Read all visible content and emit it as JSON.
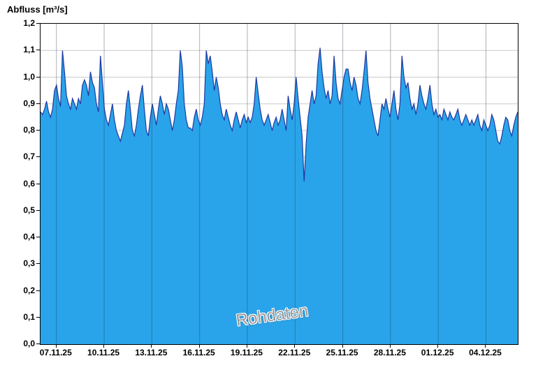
{
  "chart_data": {
    "type": "area",
    "title": "Abfluss [m³/s]",
    "watermark": "Rohdaten",
    "ylabel": "Abfluss [m³/s]",
    "ylim": [
      0,
      1.2
    ],
    "grid": "on",
    "legend": "none",
    "y_ticks": [
      {
        "value": 0.0,
        "label": "0,0"
      },
      {
        "value": 0.1,
        "label": "0,1"
      },
      {
        "value": 0.2,
        "label": "0,2"
      },
      {
        "value": 0.3,
        "label": "0,3"
      },
      {
        "value": 0.4,
        "label": "0,4"
      },
      {
        "value": 0.5,
        "label": "0,5"
      },
      {
        "value": 0.6,
        "label": "0,6"
      },
      {
        "value": 0.7,
        "label": "0,7"
      },
      {
        "value": 0.8,
        "label": "0,8"
      },
      {
        "value": 0.9,
        "label": "0,9"
      },
      {
        "value": 1.0,
        "label": "1,0"
      },
      {
        "value": 1.1,
        "label": "1,1"
      },
      {
        "value": 1.2,
        "label": "1,2"
      }
    ],
    "x_range_days": [
      0,
      30
    ],
    "x_ticks": [
      {
        "day": 1,
        "label": "07.11.25"
      },
      {
        "day": 4,
        "label": "10.11.25"
      },
      {
        "day": 7,
        "label": "13.11.25"
      },
      {
        "day": 10,
        "label": "16.11.25"
      },
      {
        "day": 13,
        "label": "19.11.25"
      },
      {
        "day": 16,
        "label": "22.11.25"
      },
      {
        "day": 19,
        "label": "25.11.25"
      },
      {
        "day": 22,
        "label": "28.11.25"
      },
      {
        "day": 25,
        "label": "01.12.25"
      },
      {
        "day": 28,
        "label": "04.12.25"
      }
    ],
    "series": [
      {
        "name": "Rohdaten",
        "unit": "m³/s",
        "values": [
          0.87,
          0.86,
          0.88,
          0.91,
          0.87,
          0.85,
          0.88,
          0.95,
          0.97,
          0.92,
          0.89,
          1.1,
          1.02,
          0.93,
          0.9,
          0.88,
          0.92,
          0.9,
          0.88,
          0.92,
          0.9,
          0.97,
          0.99,
          0.97,
          0.93,
          1.02,
          0.98,
          0.96,
          0.9,
          0.87,
          1.08,
          0.98,
          0.88,
          0.84,
          0.82,
          0.86,
          0.9,
          0.84,
          0.8,
          0.78,
          0.76,
          0.79,
          0.82,
          0.9,
          0.95,
          0.88,
          0.8,
          0.78,
          0.82,
          0.88,
          0.93,
          0.97,
          0.88,
          0.8,
          0.78,
          0.85,
          0.9,
          0.86,
          0.82,
          0.88,
          0.93,
          0.9,
          0.86,
          0.9,
          0.88,
          0.84,
          0.8,
          0.84,
          0.9,
          0.95,
          1.1,
          1.04,
          0.9,
          0.84,
          0.81,
          0.81,
          0.8,
          0.85,
          0.88,
          0.84,
          0.82,
          0.85,
          0.9,
          1.1,
          1.05,
          1.08,
          1.02,
          0.95,
          1.0,
          0.96,
          0.9,
          0.86,
          0.84,
          0.88,
          0.85,
          0.82,
          0.8,
          0.84,
          0.87,
          0.84,
          0.81,
          0.84,
          0.86,
          0.83,
          0.85,
          0.83,
          0.85,
          0.9,
          1.0,
          0.94,
          0.88,
          0.84,
          0.82,
          0.84,
          0.86,
          0.83,
          0.8,
          0.83,
          0.85,
          0.82,
          0.84,
          0.88,
          0.84,
          0.8,
          0.93,
          0.88,
          0.84,
          0.9,
          1.0,
          0.92,
          0.85,
          0.78,
          0.61,
          0.75,
          0.85,
          0.9,
          0.95,
          0.9,
          0.93,
          1.05,
          1.11,
          1.02,
          0.96,
          0.92,
          0.95,
          0.9,
          0.93,
          1.08,
          0.98,
          0.92,
          0.9,
          0.95,
          1.0,
          1.03,
          1.03,
          0.98,
          0.95,
          1.0,
          0.97,
          0.92,
          0.9,
          0.95,
          1.02,
          1.1,
          0.98,
          0.92,
          0.88,
          0.84,
          0.8,
          0.78,
          0.84,
          0.9,
          0.88,
          0.92,
          0.88,
          0.85,
          0.9,
          0.95,
          0.88,
          0.84,
          0.9,
          1.08,
          1.0,
          0.96,
          0.98,
          0.92,
          0.88,
          0.9,
          0.86,
          0.9,
          0.97,
          0.93,
          0.9,
          0.88,
          0.92,
          0.97,
          0.9,
          0.86,
          0.88,
          0.85,
          0.86,
          0.84,
          0.88,
          0.86,
          0.84,
          0.87,
          0.85,
          0.84,
          0.86,
          0.88,
          0.84,
          0.82,
          0.84,
          0.86,
          0.84,
          0.82,
          0.84,
          0.82,
          0.84,
          0.86,
          0.82,
          0.8,
          0.84,
          0.82,
          0.8,
          0.82,
          0.86,
          0.84,
          0.8,
          0.76,
          0.75,
          0.78,
          0.82,
          0.85,
          0.84,
          0.8,
          0.78,
          0.82,
          0.85,
          0.87
        ]
      }
    ],
    "colors": {
      "fill": "#29a4ea",
      "line": "#2038a0",
      "h_grid": "#c9c9c9",
      "v_grid": "#7d8fa6",
      "v_grid_rgba": "rgba(40,50,80,0.38)",
      "axis": "#000000",
      "watermark": "#9a9a9a"
    }
  }
}
